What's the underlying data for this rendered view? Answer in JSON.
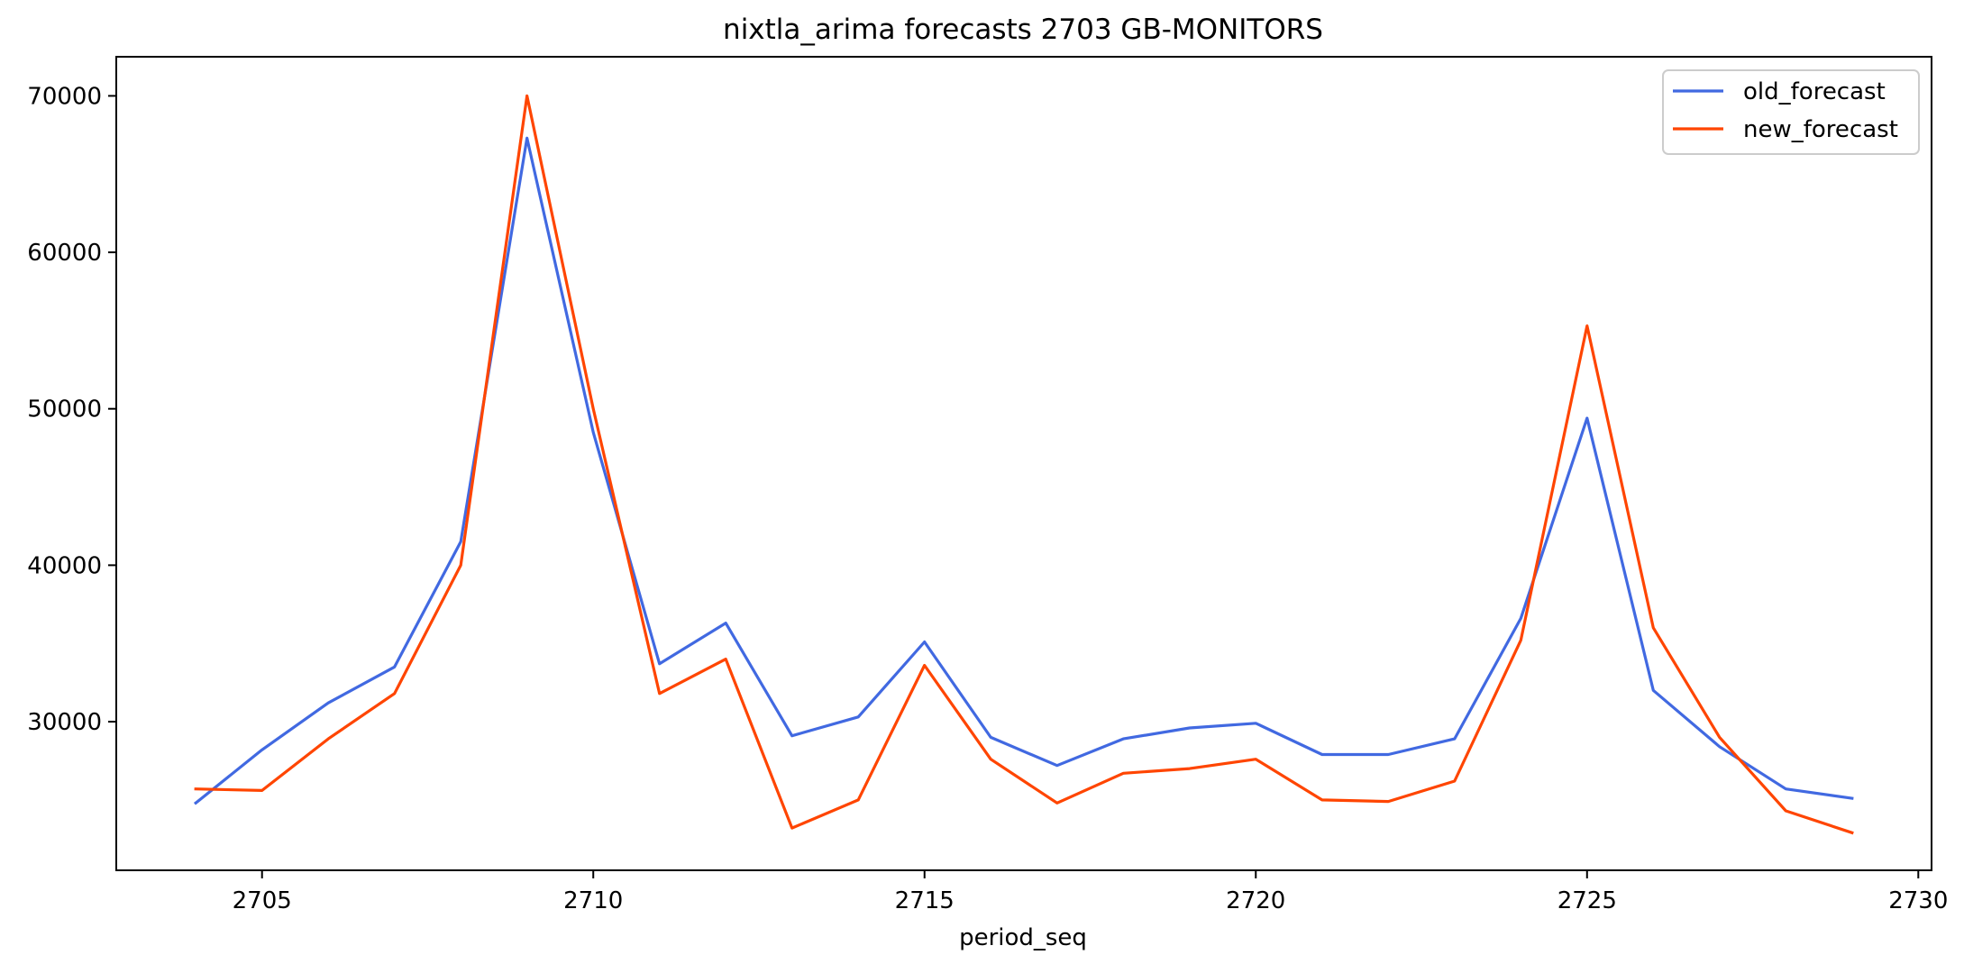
{
  "chart_data": {
    "type": "line",
    "title": "nixtla_arima forecasts 2703 GB-MONITORS",
    "xlabel": "period_seq",
    "ylabel": "",
    "xlim": [
      2702.8,
      2730.2
    ],
    "ylim": [
      20500,
      72500
    ],
    "xticks": [
      2705,
      2710,
      2715,
      2720,
      2725,
      2730
    ],
    "yticks": [
      30000,
      40000,
      50000,
      60000,
      70000
    ],
    "grid": false,
    "legend_position": "top-right",
    "x": [
      2704,
      2705,
      2706,
      2707,
      2708,
      2709,
      2710,
      2711,
      2712,
      2713,
      2714,
      2715,
      2716,
      2717,
      2718,
      2719,
      2720,
      2721,
      2722,
      2723,
      2724,
      2725,
      2726,
      2727,
      2728,
      2729
    ],
    "series": [
      {
        "name": "old_forecast",
        "color": "#4169E1",
        "values": [
          24800,
          28200,
          31200,
          33500,
          41500,
          67300,
          48500,
          33700,
          36300,
          29100,
          30300,
          35100,
          29000,
          27200,
          28900,
          29600,
          29900,
          27900,
          27900,
          28900,
          36600,
          49400,
          32000,
          28400,
          25700,
          25100
        ]
      },
      {
        "name": "new_forecast",
        "color": "#FF4500",
        "values": [
          25700,
          25600,
          28900,
          31800,
          40000,
          70000,
          50000,
          31800,
          34000,
          23200,
          25000,
          33600,
          27600,
          24800,
          26700,
          27000,
          27600,
          25000,
          24900,
          26200,
          35200,
          55300,
          36000,
          29000,
          24300,
          22900
        ]
      }
    ]
  }
}
